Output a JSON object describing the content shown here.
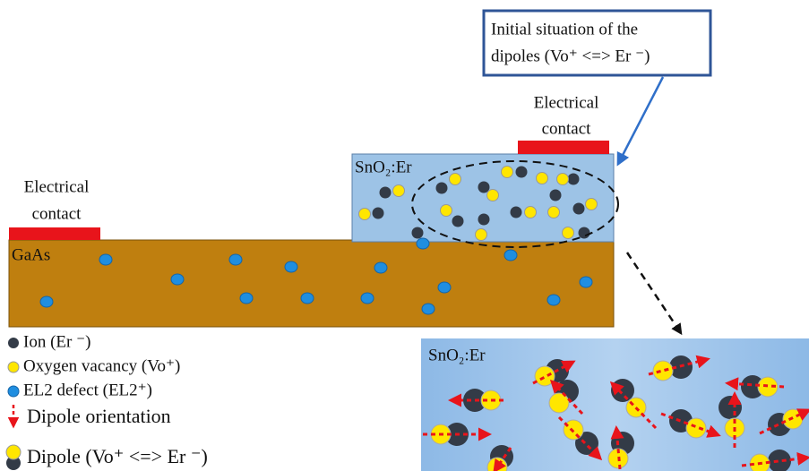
{
  "callout": {
    "lines": [
      "Initial situation of the",
      "dipoles (Vo⁺ <=> Er ⁻)"
    ]
  },
  "contacts": [
    {
      "lines": [
        "Electrical",
        "contact"
      ]
    },
    {
      "lines": [
        "Electrical",
        "contact"
      ]
    }
  ],
  "layers": {
    "film": "SnO₂:Er",
    "substrate": "GaAs"
  },
  "zoom": {
    "label": "SnO₂:Er"
  },
  "legend": [
    "Ion (Er ⁻)",
    "Oxygen vacancy (Vo⁺)",
    "EL2 defect (EL2⁺)",
    "Dipole orientation",
    "Dipole (Vo⁺ <=> Er ⁻)"
  ]
}
